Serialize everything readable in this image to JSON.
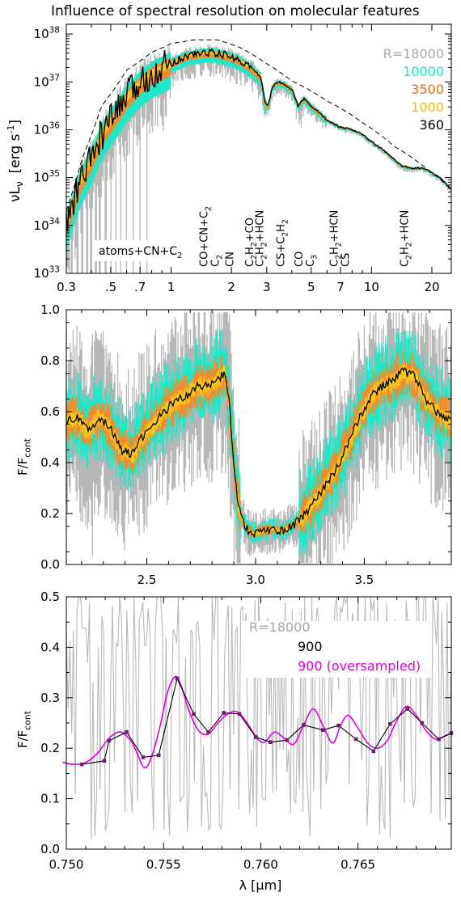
{
  "figure_title": "Influence of spectral resolution on molecular features",
  "chart_data": [
    {
      "type": "line",
      "panel": "top",
      "x_scale": "log",
      "y_scale": "log",
      "xlim": [
        0.3,
        25
      ],
      "ylim": [
        1e+33,
        1.6e+38
      ],
      "ylabel_main": "νL",
      "ylabel_sub": "ν",
      "ylabel_unit": "[erg s",
      "ylabel_unit_sup": "-1",
      "ylabel_unit_end": "]",
      "x_ticks": [
        {
          "v": 0.3,
          "label": "0.3"
        },
        {
          "v": 0.5,
          "label": ".5"
        },
        {
          "v": 0.7,
          "label": ".7"
        },
        {
          "v": 1,
          "label": "1"
        },
        {
          "v": 2,
          "label": "2"
        },
        {
          "v": 3,
          "label": "3"
        },
        {
          "v": 5,
          "label": "5"
        },
        {
          "v": 7,
          "label": "7"
        },
        {
          "v": 10,
          "label": "10"
        },
        {
          "v": 20,
          "label": "20"
        }
      ],
      "y_ticks": [
        {
          "base": "10",
          "exp": "33",
          "v": 33
        },
        {
          "base": "10",
          "exp": "34",
          "v": 34
        },
        {
          "base": "10",
          "exp": "35",
          "v": 35
        },
        {
          "base": "10",
          "exp": "36",
          "v": 36
        },
        {
          "base": "10",
          "exp": "37",
          "v": 37
        },
        {
          "base": "10",
          "exp": "38",
          "v": 38
        }
      ],
      "legend": [
        {
          "label": "R=18000",
          "color": "#a8a8a8"
        },
        {
          "label": "10000",
          "color": "#1de9c9"
        },
        {
          "label": "3500",
          "color": "#f36b1c"
        },
        {
          "label": "1000",
          "color": "#f5b800"
        },
        {
          "label": "360",
          "color": "#000000"
        }
      ],
      "annotation_box": {
        "label": "atoms+CN+C",
        "sub": "2"
      },
      "feature_labels": [
        {
          "x": 1.55,
          "lines": [
            [
              [
                "CO+CN+C",
                ""
              ],
              [
                "2",
                "sub"
              ]
            ],
            [
              [
                "C",
                ""
              ],
              [
                "2",
                "sub"
              ]
            ]
          ]
        },
        {
          "x": 1.95,
          "lines": [
            [
              [
                "CN",
                ""
              ]
            ]
          ]
        },
        {
          "x": 2.45,
          "lines": [
            [
              [
                "C",
                ""
              ],
              [
                "2",
                "sub"
              ],
              [
                "H",
                ""
              ],
              [
                "2",
                "sub"
              ],
              [
                "+CO",
                ""
              ]
            ]
          ]
        },
        {
          "x": 2.75,
          "lines": [
            [
              [
                "C",
                ""
              ],
              [
                "2",
                "sub"
              ],
              [
                "H",
                ""
              ],
              [
                "2",
                "sub"
              ],
              [
                "+HCN",
                ""
              ]
            ]
          ]
        },
        {
          "x": 3.5,
          "lines": [
            [
              [
                "CS+C",
                ""
              ],
              [
                "2",
                "sub"
              ],
              [
                "H",
                ""
              ],
              [
                "2",
                "sub"
              ]
            ]
          ]
        },
        {
          "x": 4.6,
          "lines": [
            [
              [
                "CO",
                ""
              ]
            ],
            [
              [
                "C",
                ""
              ],
              [
                "3",
                "sub"
              ]
            ]
          ]
        },
        {
          "x": 6.9,
          "lines": [
            [
              [
                "C",
                ""
              ],
              [
                "2",
                "sub"
              ],
              [
                "H",
                ""
              ],
              [
                "2",
                "sub"
              ],
              [
                "+HCN",
                ""
              ]
            ],
            [
              [
                "CS",
                ""
              ]
            ]
          ]
        },
        {
          "x": 14.5,
          "lines": [
            [
              [
                "C",
                ""
              ],
              [
                "2",
                "sub"
              ],
              [
                "H",
                ""
              ],
              [
                "2",
                "sub"
              ],
              [
                "+HCN",
                ""
              ]
            ]
          ]
        }
      ],
      "continuum_envelope": {
        "x": [
          0.3,
          0.36,
          0.45,
          0.6,
          0.8,
          1.0,
          1.3,
          1.7,
          2.2,
          3.0,
          4.0,
          6.0,
          9.0,
          13.0,
          18.0,
          25.0
        ],
        "logy": [
          34.3,
          35.4,
          36.5,
          37.25,
          37.62,
          37.8,
          37.88,
          37.88,
          37.72,
          37.38,
          37.02,
          36.6,
          36.15,
          35.65,
          35.25,
          34.75
        ]
      },
      "series_360": {
        "x": [
          0.3,
          0.32,
          0.35,
          0.4,
          0.45,
          0.5,
          0.6,
          0.7,
          0.8,
          0.9,
          1.0,
          1.2,
          1.4,
          1.6,
          1.9,
          2.2,
          2.5,
          2.8,
          2.95,
          3.05,
          3.2,
          3.4,
          3.7,
          4.0,
          4.3,
          4.6,
          5.0,
          5.5,
          6.0,
          7.0,
          8.0,
          9.0,
          10.0,
          12.0,
          14.0,
          16.0,
          18.0,
          20.0,
          22.0,
          25.0
        ],
        "logy": [
          34.0,
          34.4,
          34.9,
          35.4,
          35.9,
          36.2,
          36.7,
          37.0,
          37.2,
          37.3,
          37.4,
          37.55,
          37.6,
          37.62,
          37.55,
          37.45,
          37.3,
          37.1,
          36.55,
          36.5,
          36.9,
          37.0,
          36.95,
          36.85,
          36.5,
          36.65,
          36.5,
          36.35,
          36.2,
          36.05,
          36.0,
          35.9,
          35.75,
          35.5,
          35.25,
          35.2,
          35.2,
          35.1,
          35.0,
          34.75
        ]
      }
    },
    {
      "type": "line",
      "panel": "middle",
      "xlim": [
        2.13,
        3.9
      ],
      "ylim": [
        0.0,
        1.0
      ],
      "ylabel": "F/F",
      "ylabel_sub": "cont",
      "x_ticks": [
        {
          "v": 2.5,
          "label": "2.5"
        },
        {
          "v": 3.0,
          "label": "3.0"
        },
        {
          "v": 3.5,
          "label": "3.5"
        }
      ],
      "y_ticks": [
        {
          "v": 0.0,
          "label": "0.0"
        },
        {
          "v": 0.2,
          "label": "0.2"
        },
        {
          "v": 0.4,
          "label": "0.4"
        },
        {
          "v": 0.6,
          "label": "0.6"
        },
        {
          "v": 0.8,
          "label": "0.8"
        },
        {
          "v": 1.0,
          "label": "1.0"
        }
      ],
      "series_360": {
        "x": [
          2.13,
          2.18,
          2.23,
          2.28,
          2.33,
          2.38,
          2.43,
          2.48,
          2.53,
          2.58,
          2.63,
          2.68,
          2.73,
          2.78,
          2.83,
          2.86,
          2.88,
          2.91,
          2.93,
          2.96,
          2.99,
          3.03,
          3.08,
          3.13,
          3.18,
          3.23,
          3.28,
          3.33,
          3.38,
          3.43,
          3.48,
          3.53,
          3.58,
          3.63,
          3.68,
          3.73,
          3.78,
          3.83,
          3.9
        ],
        "y": [
          0.56,
          0.58,
          0.52,
          0.58,
          0.54,
          0.45,
          0.43,
          0.5,
          0.55,
          0.6,
          0.64,
          0.66,
          0.7,
          0.7,
          0.73,
          0.75,
          0.62,
          0.3,
          0.2,
          0.14,
          0.12,
          0.13,
          0.14,
          0.13,
          0.16,
          0.2,
          0.26,
          0.32,
          0.39,
          0.48,
          0.58,
          0.66,
          0.7,
          0.72,
          0.76,
          0.74,
          0.65,
          0.6,
          0.56
        ]
      }
    },
    {
      "type": "line",
      "panel": "bottom",
      "xlim": [
        0.75,
        0.7698
      ],
      "ylim": [
        0.0,
        0.5
      ],
      "ylabel": "F/F",
      "ylabel_sub": "cont",
      "xlabel": "λ   [μm]",
      "x_ticks": [
        {
          "v": 0.75,
          "label": "0.750"
        },
        {
          "v": 0.755,
          "label": "0.755"
        },
        {
          "v": 0.76,
          "label": "0.760"
        },
        {
          "v": 0.765,
          "label": "0.765"
        }
      ],
      "y_ticks": [
        {
          "v": 0.0,
          "label": "0.0"
        },
        {
          "v": 0.1,
          "label": "0.1"
        },
        {
          "v": 0.2,
          "label": "0.2"
        },
        {
          "v": 0.3,
          "label": "0.3"
        },
        {
          "v": 0.4,
          "label": "0.4"
        },
        {
          "v": 0.5,
          "label": "0.5"
        }
      ],
      "legend": [
        {
          "label": "R=18000",
          "color": "#a8a8a8"
        },
        {
          "label": "900",
          "color": "#000000"
        },
        {
          "label": "900  (oversampled)",
          "color": "#e000e0"
        }
      ],
      "series_900": {
        "x": [
          0.7508,
          0.75195,
          0.7522,
          0.7531,
          0.75395,
          0.75475,
          0.7557,
          0.75655,
          0.7573,
          0.7581,
          0.7589,
          0.75975,
          0.7605,
          0.76135,
          0.7622,
          0.7632,
          0.764,
          0.7649,
          0.7658,
          0.76665,
          0.76755,
          0.7683,
          0.76915,
          0.7698
        ],
        "y": [
          0.168,
          0.175,
          0.215,
          0.232,
          0.182,
          0.186,
          0.338,
          0.268,
          0.232,
          0.27,
          0.268,
          0.222,
          0.212,
          0.216,
          0.246,
          0.236,
          0.245,
          0.218,
          0.194,
          0.248,
          0.278,
          0.25,
          0.218,
          0.23
        ]
      },
      "series_900_oversampled": {
        "x": [
          0.7498,
          0.7504,
          0.751,
          0.7516,
          0.7522,
          0.7528,
          0.7534,
          0.754,
          0.7544,
          0.7548,
          0.7552,
          0.7556,
          0.7559,
          0.7563,
          0.7568,
          0.7573,
          0.7578,
          0.7583,
          0.7588,
          0.7593,
          0.7598,
          0.7602,
          0.7607,
          0.7612,
          0.7617,
          0.7622,
          0.7627,
          0.7632,
          0.7637,
          0.7641,
          0.7645,
          0.765,
          0.7655,
          0.766,
          0.7665,
          0.767,
          0.7675,
          0.768,
          0.7685,
          0.769,
          0.7695,
          0.7698
        ],
        "y": [
          0.172,
          0.168,
          0.172,
          0.19,
          0.22,
          0.232,
          0.21,
          0.162,
          0.185,
          0.24,
          0.31,
          0.342,
          0.325,
          0.275,
          0.235,
          0.228,
          0.25,
          0.268,
          0.272,
          0.25,
          0.22,
          0.212,
          0.232,
          0.22,
          0.208,
          0.245,
          0.278,
          0.245,
          0.21,
          0.245,
          0.265,
          0.24,
          0.21,
          0.2,
          0.215,
          0.255,
          0.283,
          0.265,
          0.235,
          0.218,
          0.225,
          0.23
        ]
      }
    }
  ]
}
